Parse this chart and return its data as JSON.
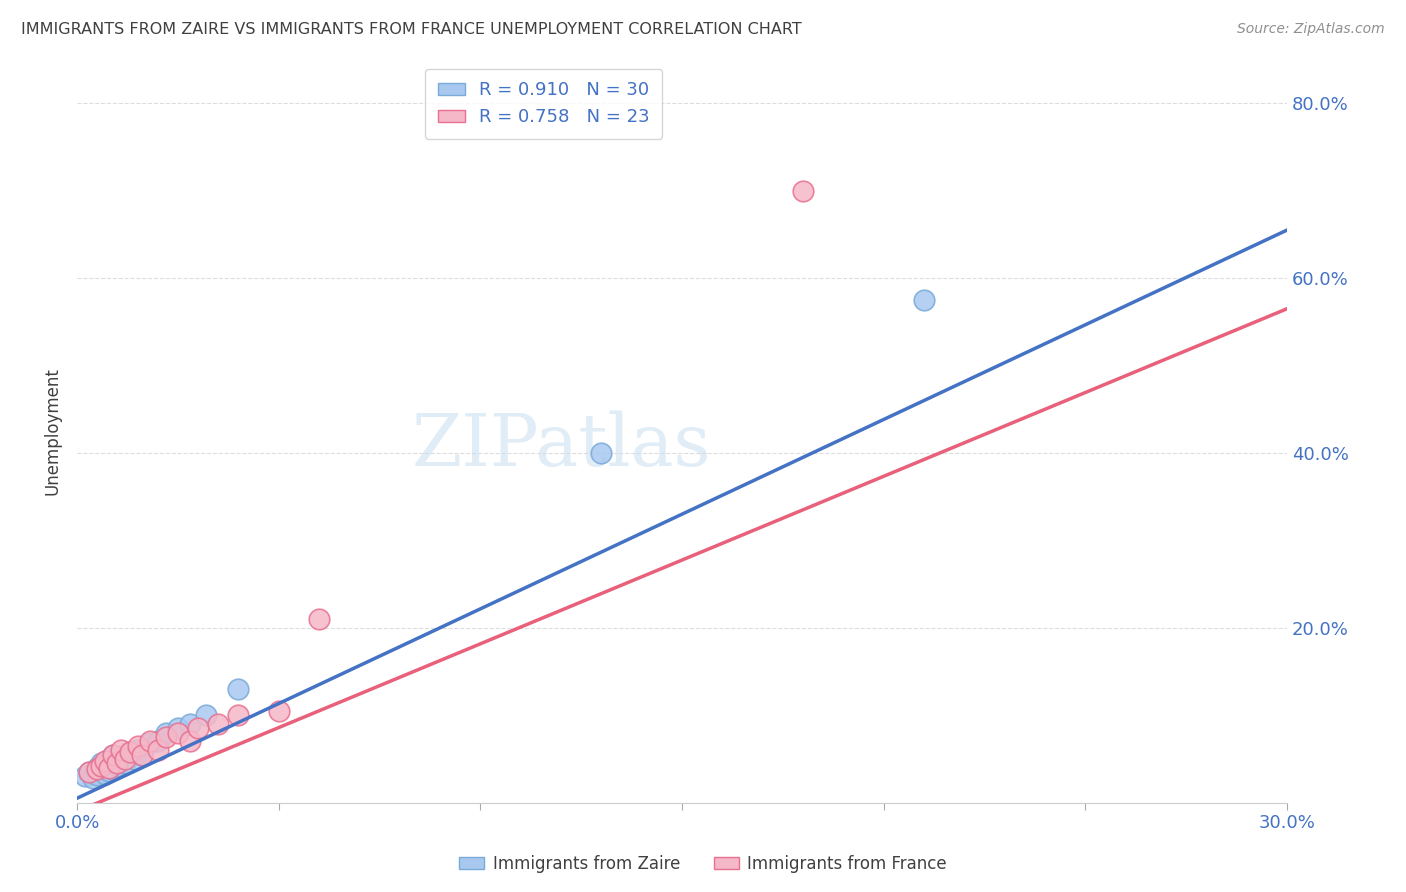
{
  "title": "IMMIGRANTS FROM ZAIRE VS IMMIGRANTS FROM FRANCE UNEMPLOYMENT CORRELATION CHART",
  "source": "Source: ZipAtlas.com",
  "ylabel": "Unemployment",
  "xlim": [
    0.0,
    0.3
  ],
  "ylim": [
    0.0,
    0.85
  ],
  "x_ticks": [
    0.0,
    0.05,
    0.1,
    0.15,
    0.2,
    0.25,
    0.3
  ],
  "y_ticks": [
    0.0,
    0.2,
    0.4,
    0.6,
    0.8
  ],
  "zaire_fill_color": "#A8C8F0",
  "france_fill_color": "#F5B8C8",
  "zaire_edge_color": "#7AAAD8",
  "france_edge_color": "#E87090",
  "zaire_line_color": "#4472C4",
  "france_line_color": "#E8607A",
  "legend_text_color": "#4472C4",
  "title_color": "#404040",
  "source_color": "#909090",
  "R_zaire": "0.910",
  "N_zaire": "30",
  "R_france": "0.758",
  "N_france": "23",
  "watermark": "ZIPatlas",
  "zaire_x": [
    0.002,
    0.003,
    0.004,
    0.005,
    0.005,
    0.006,
    0.006,
    0.007,
    0.007,
    0.008,
    0.008,
    0.009,
    0.009,
    0.01,
    0.01,
    0.011,
    0.012,
    0.013,
    0.014,
    0.015,
    0.016,
    0.018,
    0.02,
    0.022,
    0.025,
    0.028,
    0.032,
    0.04,
    0.13,
    0.21
  ],
  "zaire_y": [
    0.03,
    0.035,
    0.028,
    0.032,
    0.04,
    0.038,
    0.045,
    0.033,
    0.042,
    0.036,
    0.05,
    0.038,
    0.055,
    0.042,
    0.048,
    0.052,
    0.045,
    0.058,
    0.05,
    0.06,
    0.055,
    0.068,
    0.07,
    0.08,
    0.085,
    0.09,
    0.1,
    0.13,
    0.4,
    0.575
  ],
  "france_x": [
    0.003,
    0.005,
    0.006,
    0.007,
    0.008,
    0.009,
    0.01,
    0.011,
    0.012,
    0.013,
    0.015,
    0.016,
    0.018,
    0.02,
    0.022,
    0.025,
    0.028,
    0.03,
    0.035,
    0.04,
    0.05,
    0.06,
    0.18
  ],
  "france_y": [
    0.035,
    0.038,
    0.042,
    0.048,
    0.04,
    0.055,
    0.045,
    0.06,
    0.05,
    0.058,
    0.065,
    0.055,
    0.07,
    0.06,
    0.075,
    0.08,
    0.07,
    0.085,
    0.09,
    0.1,
    0.105,
    0.21,
    0.7
  ],
  "zaire_line_x": [
    0.0,
    0.3
  ],
  "zaire_line_y": [
    0.005,
    0.655
  ],
  "france_line_x": [
    0.0,
    0.3
  ],
  "france_line_y": [
    -0.01,
    0.565
  ]
}
